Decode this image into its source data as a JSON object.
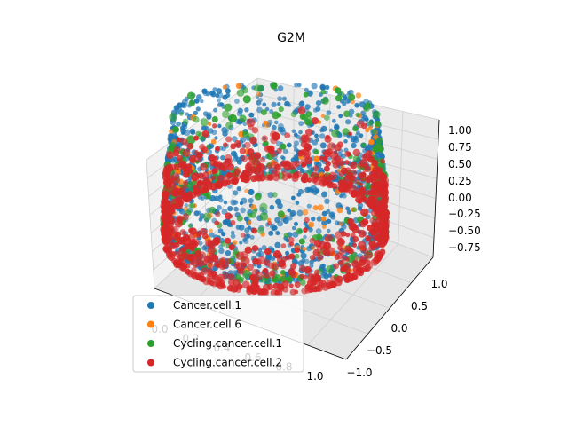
{
  "chart_data": {
    "type": "scatter",
    "projection": "3d",
    "title": "G2M",
    "xlabel": "",
    "ylabel": "",
    "zlabel": "",
    "xlim": [
      0.0,
      1.0
    ],
    "ylim": [
      -1.0,
      1.0
    ],
    "zlim": [
      -0.9,
      1.05
    ],
    "x_ticks": [
      "0.0",
      "0.2",
      "0.4",
      "0.6",
      "0.8",
      "1.0"
    ],
    "y_ticks": [
      "−1.0",
      "−0.5",
      "0.0",
      "0.5",
      "1.0"
    ],
    "z_ticks": [
      "−0.75",
      "−0.50",
      "−0.25",
      "0.00",
      "0.25",
      "0.50",
      "0.75",
      "1.00"
    ],
    "grid": true,
    "legend_position": "lower-left",
    "series": [
      {
        "name": "Cancer.cell.1",
        "color": "#1f77b4",
        "point_count": 1400
      },
      {
        "name": "Cancer.cell.6",
        "color": "#ff7f0e",
        "point_count": 120
      },
      {
        "name": "Cycling.cancer.cell.1",
        "color": "#2ca02c",
        "point_count": 260
      },
      {
        "name": "Cycling.cancer.cell.2",
        "color": "#d62728",
        "point_count": 900
      }
    ]
  }
}
